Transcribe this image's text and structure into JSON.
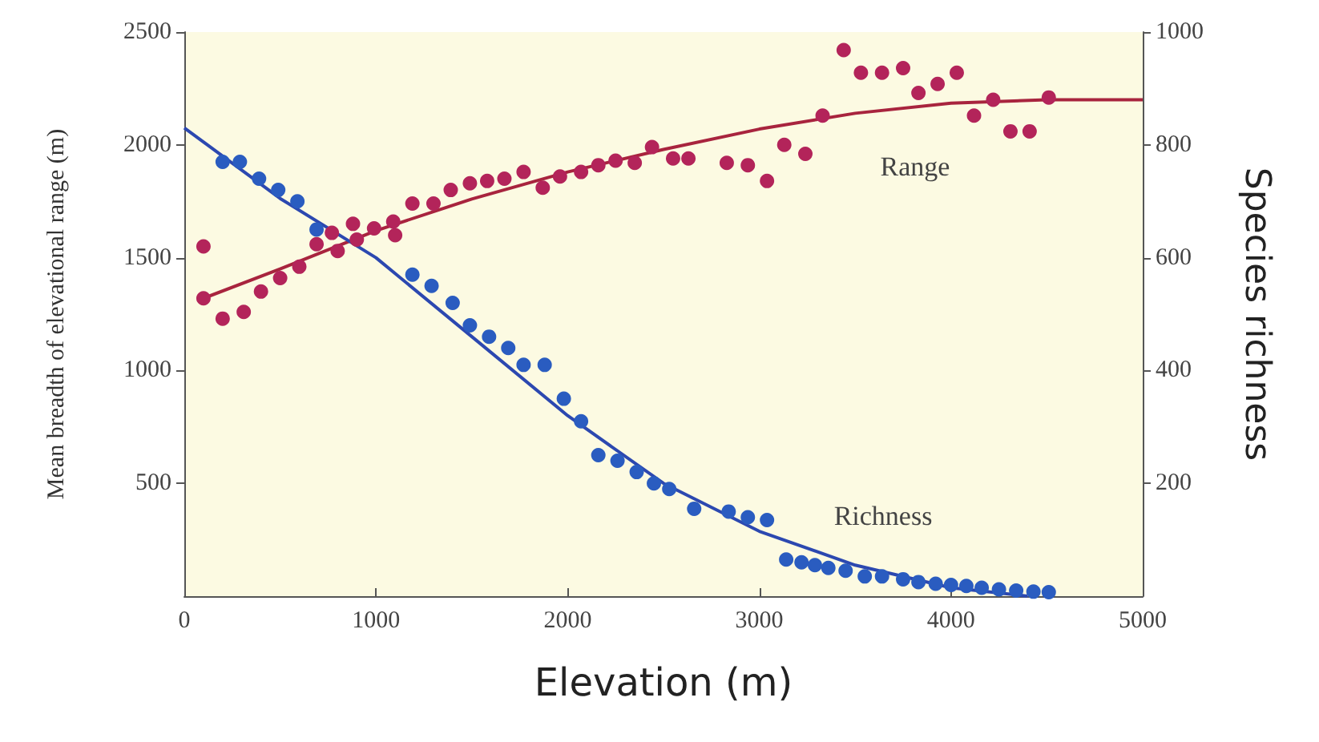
{
  "chart_data": {
    "type": "scatter",
    "xlabel": "Elevation (m)",
    "ylabel": "Mean breadth of elevational range (m)",
    "y2label": "Species richness",
    "xlim": [
      0,
      5000
    ],
    "xticks": [
      0,
      1000,
      2000,
      3000,
      4000,
      5000
    ],
    "ylim": [
      0,
      2500
    ],
    "yticks": [
      500,
      1000,
      1500,
      2000,
      2500
    ],
    "y2lim": [
      0,
      1000
    ],
    "y2ticks": [
      200,
      400,
      600,
      800,
      1000
    ],
    "grid": false,
    "marker": "circle",
    "annotations": [
      "Range",
      "Richness"
    ],
    "series": [
      {
        "color": "#b3245a",
        "x": [
          100,
          100,
          200,
          310,
          400,
          500,
          600,
          690,
          770,
          800,
          880,
          900,
          990,
          1090,
          1100,
          1190,
          1300,
          1390,
          1490,
          1580,
          1670,
          1770,
          1870,
          1960,
          2070,
          2160,
          2250,
          2350,
          2440,
          2550,
          2630,
          2830,
          2940,
          3040,
          3130,
          3240,
          3330,
          3440,
          3530,
          3640,
          3750,
          3830,
          3930,
          4030,
          4120,
          4220,
          4310,
          4410,
          4510
        ],
        "values": [
          1550,
          1320,
          1230,
          1260,
          1350,
          1410,
          1460,
          1560,
          1610,
          1530,
          1650,
          1580,
          1630,
          1660,
          1600,
          1740,
          1740,
          1800,
          1830,
          1840,
          1850,
          1880,
          1810,
          1860,
          1880,
          1910,
          1930,
          1920,
          1990,
          1940,
          1940,
          1920,
          1910,
          1840,
          2000,
          1960,
          2130,
          2420,
          2320,
          2320,
          2340,
          2230,
          2270,
          2320,
          2130,
          2200,
          2060,
          2060,
          2210
        ]
      },
      {
        "type": "line",
        "marker": "none",
        "color": "#a8243e",
        "x": [
          100,
          500,
          1000,
          1500,
          2000,
          2500,
          3000,
          3500,
          4000,
          4500,
          5000
        ],
        "values": [
          1320,
          1450,
          1620,
          1760,
          1880,
          1980,
          2070,
          2140,
          2185,
          2200,
          2200
        ]
      },
      {
        "axis": "y2",
        "color": "#2a5cc0",
        "x": [
          200,
          290,
          390,
          490,
          590,
          690,
          1190,
          1290,
          1400,
          1490,
          1590,
          1690,
          1770,
          1880,
          1980,
          2070,
          2160,
          2260,
          2360,
          2450,
          2530,
          2660,
          2840,
          2940,
          3040,
          3140,
          3220,
          3290,
          3360,
          3450,
          3550,
          3640,
          3750,
          3830,
          3920,
          4000,
          4080,
          4160,
          4250,
          4340,
          4430,
          4510
        ],
        "values": [
          770,
          770,
          740,
          720,
          700,
          650,
          570,
          550,
          520,
          480,
          460,
          440,
          410,
          410,
          350,
          310,
          250,
          240,
          220,
          200,
          190,
          155,
          150,
          140,
          135,
          65,
          60,
          55,
          50,
          45,
          35,
          35,
          30,
          25,
          22,
          20,
          18,
          15,
          12,
          10,
          8,
          7
        ]
      },
      {
        "type": "line",
        "axis": "y2",
        "marker": "none",
        "color": "#2c48b0",
        "x": [
          0,
          500,
          1000,
          1500,
          2000,
          2500,
          3000,
          3500,
          4000,
          4400
        ],
        "values": [
          830,
          705,
          600,
          460,
          320,
          200,
          115,
          55,
          15,
          0
        ]
      }
    ]
  }
}
